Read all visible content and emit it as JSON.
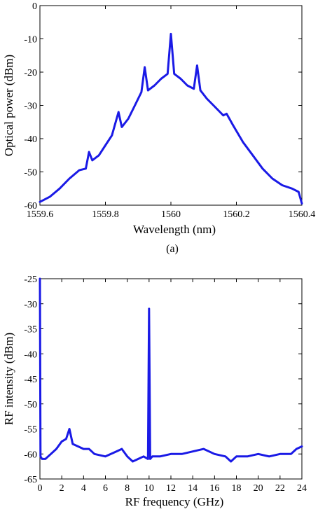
{
  "caption_a": "(a)",
  "chart_data": [
    {
      "type": "line",
      "xlabel": "Wavelength (nm)",
      "ylabel": "Optical power (dBm)",
      "xlim": [
        1559.6,
        1560.4
      ],
      "ylim": [
        -60,
        0
      ],
      "xticks": [
        1559.6,
        1559.8,
        1560,
        1560.2,
        1560.4
      ],
      "xtick_labels": [
        "1559.6",
        "1559.8",
        "1560",
        "1560.2",
        "1560.4"
      ],
      "yticks": [
        0,
        -10,
        -20,
        -30,
        -40,
        -50,
        -60
      ],
      "ytick_labels": [
        "0",
        "-10",
        "-20",
        "-30",
        "-40",
        "-50",
        "-60"
      ],
      "grid": false,
      "line_color": "#1a1ae6",
      "series": [
        {
          "x": [
            1559.6,
            1559.63,
            1559.66,
            1559.69,
            1559.72,
            1559.74,
            1559.75,
            1559.76,
            1559.78,
            1559.8,
            1559.82,
            1559.84,
            1559.85,
            1559.87,
            1559.89,
            1559.91,
            1559.92,
            1559.93,
            1559.95,
            1559.97,
            1559.99,
            1560.0,
            1560.01,
            1560.03,
            1560.05,
            1560.07,
            1560.08,
            1560.09,
            1560.11,
            1560.13,
            1560.15,
            1560.16,
            1560.17,
            1560.19,
            1560.22,
            1560.25,
            1560.28,
            1560.31,
            1560.34,
            1560.37,
            1560.39,
            1560.4
          ],
          "y": [
            -59,
            -57.5,
            -55,
            -52,
            -49.5,
            -49,
            -44,
            -46.5,
            -45,
            -42,
            -39,
            -32,
            -36.5,
            -34,
            -30,
            -26,
            -18.5,
            -25.5,
            -24,
            -22,
            -20.5,
            -8.5,
            -20.5,
            -22,
            -24,
            -25,
            -18,
            -25.5,
            -28,
            -30,
            -32,
            -33,
            -32.5,
            -36,
            -41,
            -45,
            -49,
            -52,
            -54,
            -55,
            -56,
            -59.5
          ]
        }
      ]
    },
    {
      "type": "line",
      "xlabel": "RF frequency (GHz)",
      "ylabel": "RF intensity (dBm)",
      "xlim": [
        0,
        24
      ],
      "ylim": [
        -65,
        -25
      ],
      "xticks": [
        0,
        2,
        4,
        6,
        8,
        10,
        12,
        14,
        16,
        18,
        20,
        22,
        24
      ],
      "xtick_labels": [
        "0",
        "2",
        "4",
        "6",
        "8",
        "10",
        "12",
        "14",
        "16",
        "18",
        "20",
        "22",
        "24"
      ],
      "yticks": [
        -25,
        -30,
        -35,
        -40,
        -45,
        -50,
        -55,
        -60,
        -65
      ],
      "ytick_labels": [
        "-25",
        "-30",
        "-35",
        "-40",
        "-45",
        "-50",
        "-55",
        "-60",
        "-65"
      ],
      "grid": false,
      "line_color": "#1a1ae6",
      "series": [
        {
          "x": [
            0,
            0.05,
            0.2,
            0.5,
            1,
            1.5,
            2,
            2.4,
            2.7,
            3,
            3.5,
            4,
            4.5,
            5,
            6,
            7,
            7.5,
            8,
            8.5,
            9,
            9.5,
            9.9,
            10.0,
            10.1,
            10.3,
            11,
            12,
            13,
            14,
            15,
            16,
            17,
            17.5,
            18,
            19,
            20,
            21,
            22,
            23,
            23.5,
            24
          ],
          "y": [
            -25,
            -60.5,
            -61,
            -61,
            -60,
            -59,
            -57.5,
            -57,
            -55,
            -58,
            -58.5,
            -59,
            -59,
            -60,
            -60.5,
            -59.5,
            -59,
            -60.5,
            -61.5,
            -61,
            -60.5,
            -61,
            -31,
            -61,
            -60.5,
            -60.5,
            -60,
            -60,
            -59.5,
            -59,
            -60,
            -60.5,
            -61.5,
            -60.5,
            -60.5,
            -60,
            -60.5,
            -60,
            -60,
            -59,
            -58.5
          ]
        }
      ]
    }
  ]
}
